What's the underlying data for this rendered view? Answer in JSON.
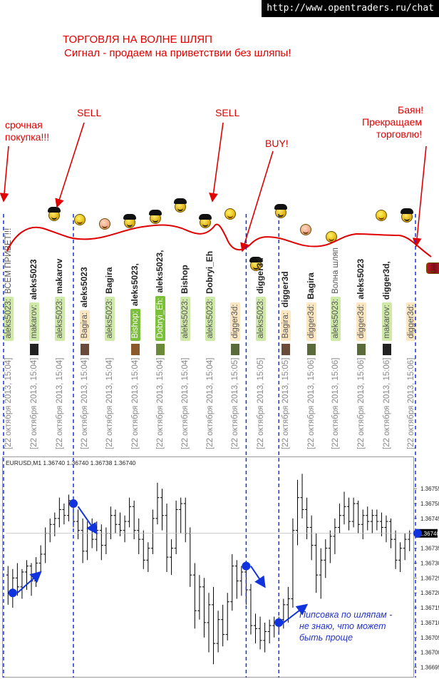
{
  "site_url": "http://www.opentraders.ru/chat",
  "headline": {
    "title": "ТОРГОВЛЯ НА ВОЛНЕ ШЛЯП",
    "subtitle": "Сигнал - продаем на приветствии без шляпы!"
  },
  "annotations": {
    "urgent_buy": [
      "срочная",
      "покупка!!!"
    ],
    "sell_1": "SELL",
    "sell_2": "SELL",
    "buy": "BUY!",
    "stop": [
      "Баян!",
      "Прекращаем",
      "торговлю!"
    ],
    "pip_note": [
      "Пипсовка по шляпам -",
      "не знаю, что может",
      "быть проще"
    ]
  },
  "colors": {
    "annotation": "#e10000",
    "curve": "#e00000",
    "arrows": "#1133dd",
    "divider": "#1133dd",
    "candles": "#000000",
    "price_marker": "#1133dd"
  },
  "chat_messages": [
    {
      "date": "[22 октября 2013, 15:04]",
      "sender": "aleks5023:",
      "target": "ВСЕМ ПРИВЕТ!!!",
      "target_style": "text",
      "badge": "#cfe9a8",
      "avatar": "none",
      "icon": "none"
    },
    {
      "date": "[22 октября 2013, 15:04]",
      "sender": "makarov:",
      "target": "aleks5023",
      "target_style": "nick",
      "badge": "#cfe9a8",
      "avatar": "#222222",
      "icon": "black-hat-smiley"
    },
    {
      "date": "[22 октября 2013, 15:04]",
      "sender": "aleks5023:",
      "target": "makarov",
      "target_style": "nick",
      "badge": "#cfe9a8",
      "avatar": "none",
      "icon": "smiley"
    },
    {
      "date": "[22 октября 2013, 15:04]",
      "sender": "Bagira:",
      "target": "aleks5023",
      "target_style": "nick",
      "badge": "#fbe7c2",
      "avatar": "#6a4a3a",
      "icon": "dizzy-smiley"
    },
    {
      "date": "[22 октября 2013, 15:04]",
      "sender": "aleks5023:",
      "target": "Bagira",
      "target_style": "nick",
      "badge": "#cfe9a8",
      "avatar": "none",
      "icon": "black-hat-smiley"
    },
    {
      "date": "[22 октября 2013, 15:04]",
      "sender": "Bishop:",
      "target": "aleks5023,",
      "target_style": "nick",
      "badge": "#7bbf3a",
      "avatar": "#8a5a2a",
      "icon": "black-hat-smiley"
    },
    {
      "date": "[22 октября 2013, 15:04]",
      "sender": "Dobryi_Eh:",
      "target": "aleks5023,",
      "target_style": "nick",
      "badge": "#7bbf3a",
      "avatar": "#6a8a3a",
      "icon": "black-hat-smiley"
    },
    {
      "date": "[22 октября 2013, 15:04]",
      "sender": "aleks5023:",
      "target": "Bishop",
      "target_style": "nick",
      "badge": "#cfe9a8",
      "avatar": "none",
      "icon": "black-hat-smiley"
    },
    {
      "date": "[22 октября 2013, 15:04]",
      "sender": "aleks5023:",
      "target": "Dobryi_Eh",
      "target_style": "nick",
      "badge": "#cfe9a8",
      "avatar": "none",
      "icon": "smiley"
    },
    {
      "date": "[22 октября 2013, 15:05]",
      "sender": "digger3d:",
      "target": "",
      "target_style": "nick",
      "badge": "#fbe7c2",
      "avatar": "#5a6a3a",
      "icon": "black-hat-smiley"
    },
    {
      "date": "[22 октября 2013, 15:05]",
      "sender": "aleks5023:",
      "target": "digger3d",
      "target_style": "nick",
      "badge": "#cfe9a8",
      "avatar": "none",
      "icon": "black-hat-smiley"
    },
    {
      "date": "[22 октября 2013, 15:05]",
      "sender": "Bagira:",
      "target": "digger3d",
      "target_style": "nick",
      "badge": "#fbe7c2",
      "avatar": "#6a4a3a",
      "icon": "dizzy-smiley"
    },
    {
      "date": "[22 октября 2013, 15:06]",
      "sender": "digger3d:",
      "target": "Bagira",
      "target_style": "nick",
      "badge": "#fbe7c2",
      "avatar": "#5a6a3a",
      "icon": "smiley"
    },
    {
      "date": "[22 октября 2013, 15:06]",
      "sender": "aleks5023:",
      "target": "Волна шляп",
      "target_style": "text",
      "badge": "#cfe9a8",
      "avatar": "none",
      "icon": "none"
    },
    {
      "date": "[22 октября 2013, 15:06]",
      "sender": "digger3d:",
      "target": "aleks5023",
      "target_style": "nick",
      "badge": "#fbe7c2",
      "avatar": "#5a6a3a",
      "icon": "grin-smiley"
    },
    {
      "date": "[22 октября 2013, 15:06]",
      "sender": "makarov:",
      "target": "digger3d,",
      "target_style": "nick",
      "badge": "#cfe9a8",
      "avatar": "#222222",
      "icon": "black-hat-smiley"
    },
    {
      "date": "[22 октября 2013, 15:06]",
      "sender": "digger3d:",
      "target": "",
      "target_style": "nick",
      "badge": "#fbe7c2",
      "avatar": "none",
      "icon": "accordion-smiley"
    }
  ],
  "chart_data": {
    "type": "candlestick",
    "symbol_header": "EURUSD,M1  1.36740 1.36740 1.36738 1.36740",
    "ylim": [
      1.36692,
      1.36762
    ],
    "yticks": [
      "1.36755",
      "1.36750",
      "1.36745",
      "1.36735",
      "1.36730",
      "1.36725",
      "1.36720",
      "1.36715",
      "1.36710",
      "1.36705",
      "1.36700",
      "1.36695"
    ],
    "current_price_label": "1.36740",
    "current_price": 1.3674,
    "grid": false,
    "bars": [
      {
        "o": 1.36726,
        "h": 1.36729,
        "l": 1.36716,
        "c": 1.3672
      },
      {
        "o": 1.3672,
        "h": 1.36728,
        "l": 1.36715,
        "c": 1.36725
      },
      {
        "o": 1.36725,
        "h": 1.3673,
        "l": 1.36719,
        "c": 1.36722
      },
      {
        "o": 1.36722,
        "h": 1.36728,
        "l": 1.36718,
        "c": 1.36727
      },
      {
        "o": 1.36727,
        "h": 1.36731,
        "l": 1.36721,
        "c": 1.36729
      },
      {
        "o": 1.36729,
        "h": 1.3673,
        "l": 1.36719,
        "c": 1.36724
      },
      {
        "o": 1.36724,
        "h": 1.36732,
        "l": 1.36722,
        "c": 1.3673
      },
      {
        "o": 1.3673,
        "h": 1.36736,
        "l": 1.36727,
        "c": 1.36733
      },
      {
        "o": 1.36733,
        "h": 1.36742,
        "l": 1.3673,
        "c": 1.3674
      },
      {
        "o": 1.3674,
        "h": 1.36745,
        "l": 1.36737,
        "c": 1.36743
      },
      {
        "o": 1.36743,
        "h": 1.36747,
        "l": 1.36739,
        "c": 1.36745
      },
      {
        "o": 1.36745,
        "h": 1.36752,
        "l": 1.36742,
        "c": 1.36748
      },
      {
        "o": 1.36748,
        "h": 1.3675,
        "l": 1.36743,
        "c": 1.36746
      },
      {
        "o": 1.36746,
        "h": 1.36753,
        "l": 1.36744,
        "c": 1.36751
      },
      {
        "o": 1.36751,
        "h": 1.36752,
        "l": 1.36742,
        "c": 1.36744
      },
      {
        "o": 1.36744,
        "h": 1.36748,
        "l": 1.36738,
        "c": 1.36741
      },
      {
        "o": 1.36741,
        "h": 1.36745,
        "l": 1.3673,
        "c": 1.36734
      },
      {
        "o": 1.36734,
        "h": 1.36744,
        "l": 1.36731,
        "c": 1.36742
      },
      {
        "o": 1.36742,
        "h": 1.36745,
        "l": 1.36735,
        "c": 1.36738
      },
      {
        "o": 1.36738,
        "h": 1.36744,
        "l": 1.36734,
        "c": 1.36741
      },
      {
        "o": 1.36741,
        "h": 1.36743,
        "l": 1.36731,
        "c": 1.36736
      },
      {
        "o": 1.36736,
        "h": 1.36742,
        "l": 1.36733,
        "c": 1.3674
      },
      {
        "o": 1.3674,
        "h": 1.36749,
        "l": 1.36738,
        "c": 1.36746
      },
      {
        "o": 1.36746,
        "h": 1.36748,
        "l": 1.3674,
        "c": 1.36743
      },
      {
        "o": 1.36743,
        "h": 1.36747,
        "l": 1.36739,
        "c": 1.36741
      },
      {
        "o": 1.36741,
        "h": 1.36746,
        "l": 1.36737,
        "c": 1.36744
      },
      {
        "o": 1.36744,
        "h": 1.36752,
        "l": 1.36742,
        "c": 1.36749
      },
      {
        "o": 1.36749,
        "h": 1.36751,
        "l": 1.36738,
        "c": 1.36741
      },
      {
        "o": 1.36741,
        "h": 1.36745,
        "l": 1.36733,
        "c": 1.36738
      },
      {
        "o": 1.36738,
        "h": 1.36741,
        "l": 1.36728,
        "c": 1.36731
      },
      {
        "o": 1.36731,
        "h": 1.36737,
        "l": 1.36727,
        "c": 1.36735
      },
      {
        "o": 1.36735,
        "h": 1.36748,
        "l": 1.36733,
        "c": 1.36745
      },
      {
        "o": 1.36745,
        "h": 1.36757,
        "l": 1.36743,
        "c": 1.36752
      },
      {
        "o": 1.36752,
        "h": 1.36755,
        "l": 1.36741,
        "c": 1.36746
      },
      {
        "o": 1.36746,
        "h": 1.3675,
        "l": 1.36727,
        "c": 1.36732
      },
      {
        "o": 1.36732,
        "h": 1.36738,
        "l": 1.36726,
        "c": 1.36735
      },
      {
        "o": 1.36735,
        "h": 1.36751,
        "l": 1.36733,
        "c": 1.36748
      },
      {
        "o": 1.36748,
        "h": 1.36752,
        "l": 1.3674,
        "c": 1.3675
      },
      {
        "o": 1.3675,
        "h": 1.36752,
        "l": 1.36737,
        "c": 1.3674
      },
      {
        "o": 1.3674,
        "h": 1.36742,
        "l": 1.36722,
        "c": 1.36726
      },
      {
        "o": 1.36726,
        "h": 1.3673,
        "l": 1.36708,
        "c": 1.36714
      },
      {
        "o": 1.36714,
        "h": 1.36726,
        "l": 1.36711,
        "c": 1.36722
      },
      {
        "o": 1.36722,
        "h": 1.36725,
        "l": 1.36705,
        "c": 1.3671
      },
      {
        "o": 1.3671,
        "h": 1.3672,
        "l": 1.367,
        "c": 1.36716
      },
      {
        "o": 1.36716,
        "h": 1.36722,
        "l": 1.36696,
        "c": 1.36703
      },
      {
        "o": 1.36703,
        "h": 1.36714,
        "l": 1.367,
        "c": 1.36711
      },
      {
        "o": 1.36711,
        "h": 1.36716,
        "l": 1.36702,
        "c": 1.36706
      },
      {
        "o": 1.36706,
        "h": 1.3672,
        "l": 1.36704,
        "c": 1.36717
      },
      {
        "o": 1.36717,
        "h": 1.36733,
        "l": 1.36714,
        "c": 1.36729
      },
      {
        "o": 1.36729,
        "h": 1.36731,
        "l": 1.36718,
        "c": 1.36724
      },
      {
        "o": 1.36724,
        "h": 1.36729,
        "l": 1.36719,
        "c": 1.36727
      },
      {
        "o": 1.36727,
        "h": 1.36728,
        "l": 1.36716,
        "c": 1.36721
      },
      {
        "o": 1.36721,
        "h": 1.36723,
        "l": 1.36706,
        "c": 1.36709
      },
      {
        "o": 1.36709,
        "h": 1.36713,
        "l": 1.36703,
        "c": 1.36708
      },
      {
        "o": 1.36708,
        "h": 1.36712,
        "l": 1.36701,
        "c": 1.36704
      },
      {
        "o": 1.36704,
        "h": 1.3671,
        "l": 1.367,
        "c": 1.36707
      },
      {
        "o": 1.36707,
        "h": 1.36711,
        "l": 1.36703,
        "c": 1.36709
      },
      {
        "o": 1.36709,
        "h": 1.36712,
        "l": 1.36705,
        "c": 1.3671
      },
      {
        "o": 1.3671,
        "h": 1.36712,
        "l": 1.36706,
        "c": 1.36711
      },
      {
        "o": 1.36711,
        "h": 1.36718,
        "l": 1.36708,
        "c": 1.36716
      },
      {
        "o": 1.36716,
        "h": 1.36722,
        "l": 1.3671,
        "c": 1.36718
      },
      {
        "o": 1.36718,
        "h": 1.36745,
        "l": 1.36715,
        "c": 1.36741
      },
      {
        "o": 1.36741,
        "h": 1.36758,
        "l": 1.36736,
        "c": 1.36752
      },
      {
        "o": 1.36752,
        "h": 1.3676,
        "l": 1.36745,
        "c": 1.36748
      },
      {
        "o": 1.36748,
        "h": 1.36752,
        "l": 1.36738,
        "c": 1.36742
      },
      {
        "o": 1.36742,
        "h": 1.36746,
        "l": 1.36731,
        "c": 1.36736
      },
      {
        "o": 1.36736,
        "h": 1.3674,
        "l": 1.3672,
        "c": 1.36726
      },
      {
        "o": 1.36726,
        "h": 1.36735,
        "l": 1.36718,
        "c": 1.36731
      },
      {
        "o": 1.36731,
        "h": 1.36738,
        "l": 1.36725,
        "c": 1.36735
      },
      {
        "o": 1.36735,
        "h": 1.36741,
        "l": 1.3673,
        "c": 1.36739
      },
      {
        "o": 1.36739,
        "h": 1.36745,
        "l": 1.36733,
        "c": 1.36742
      },
      {
        "o": 1.36742,
        "h": 1.3675,
        "l": 1.3674,
        "c": 1.36746
      },
      {
        "o": 1.36746,
        "h": 1.36754,
        "l": 1.36743,
        "c": 1.36749
      },
      {
        "o": 1.36749,
        "h": 1.36752,
        "l": 1.36741,
        "c": 1.36744
      },
      {
        "o": 1.36744,
        "h": 1.36752,
        "l": 1.36742,
        "c": 1.3675
      },
      {
        "o": 1.3675,
        "h": 1.36751,
        "l": 1.3674,
        "c": 1.36743
      },
      {
        "o": 1.36743,
        "h": 1.36748,
        "l": 1.36738,
        "c": 1.36746
      },
      {
        "o": 1.36746,
        "h": 1.36749,
        "l": 1.36741,
        "c": 1.36744
      },
      {
        "o": 1.36744,
        "h": 1.36748,
        "l": 1.3674,
        "c": 1.36746
      },
      {
        "o": 1.36746,
        "h": 1.36748,
        "l": 1.36741,
        "c": 1.36744
      },
      {
        "o": 1.36744,
        "h": 1.36747,
        "l": 1.36739,
        "c": 1.36742
      },
      {
        "o": 1.36742,
        "h": 1.36746,
        "l": 1.36737,
        "c": 1.36744
      },
      {
        "o": 1.36744,
        "h": 1.36745,
        "l": 1.36735,
        "c": 1.36738
      },
      {
        "o": 1.36738,
        "h": 1.36741,
        "l": 1.36728,
        "c": 1.36731
      },
      {
        "o": 1.36731,
        "h": 1.36737,
        "l": 1.36727,
        "c": 1.36735
      },
      {
        "o": 1.36735,
        "h": 1.3674,
        "l": 1.36731,
        "c": 1.36738
      },
      {
        "o": 1.36738,
        "h": 1.36741,
        "l": 1.36734,
        "c": 1.3674
      }
    ],
    "dividers_at_bar": [
      0,
      14,
      51,
      58,
      84
    ],
    "markers": [
      {
        "bar": 1,
        "price": 1.3672
      },
      {
        "bar": 14,
        "price": 1.3675
      },
      {
        "bar": 51,
        "price": 1.36729
      },
      {
        "bar": 58,
        "price": 1.3671
      },
      {
        "bar": 84,
        "price": 1.3674
      }
    ],
    "arrows": [
      {
        "from_bar": 2,
        "from_price": 1.3672,
        "to_bar": 7,
        "to_price": 1.36727
      },
      {
        "from_bar": 15,
        "from_price": 1.36749,
        "to_bar": 19,
        "to_price": 1.3674
      },
      {
        "from_bar": 52,
        "from_price": 1.36729,
        "to_bar": 55,
        "to_price": 1.36722
      },
      {
        "from_bar": 59,
        "from_price": 1.3671,
        "to_bar": 64,
        "to_price": 1.36716
      }
    ]
  }
}
